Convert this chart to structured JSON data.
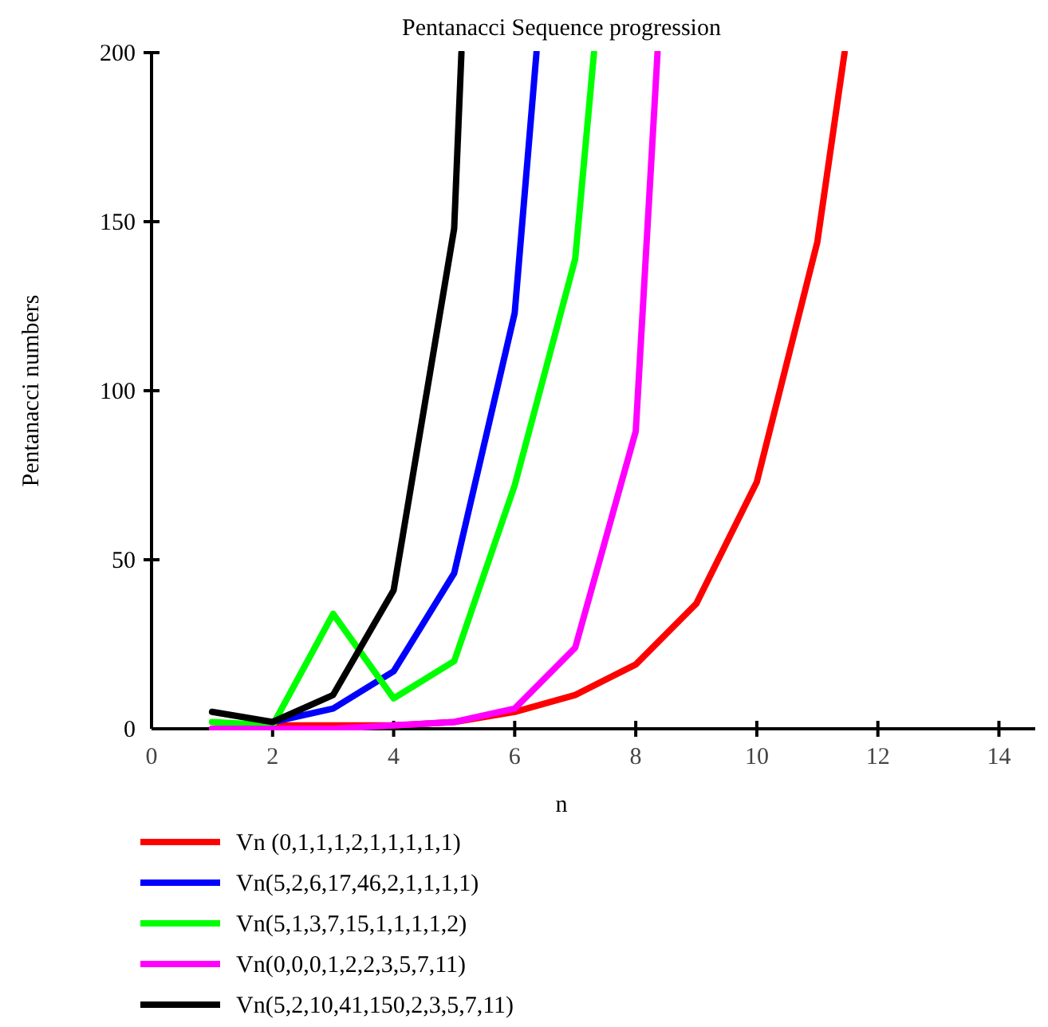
{
  "chart_data": {
    "type": "line",
    "title": "Pentanacci  Sequence progression",
    "xlabel": "n",
    "ylabel": "Pentanacci  numbers",
    "xlim": [
      0,
      14.6
    ],
    "xticks": [
      0,
      2,
      4,
      6,
      8,
      10,
      12,
      14
    ],
    "ylim": [
      0,
      200
    ],
    "yticks": [
      0,
      50,
      100,
      150,
      200
    ],
    "grid": false,
    "legend": "bottom",
    "line_style": "solid",
    "marker": "none",
    "series": [
      {
        "name": "Vn (0,1,1,1,2,1,1,1,1,1)",
        "color": "#ff0000",
        "x": [
          1,
          2,
          3,
          4,
          5,
          6,
          7,
          8,
          9,
          10,
          11,
          11.45
        ],
        "values": [
          0,
          1,
          1,
          1,
          2,
          5,
          10,
          19,
          37,
          73,
          144,
          200
        ]
      },
      {
        "name": "Vn(5,2,6,17,46,2,1,1,1,1)",
        "color": "#0000ff",
        "x": [
          2,
          3,
          4,
          5,
          6,
          6.36
        ],
        "values": [
          2,
          6,
          17,
          46,
          123,
          200
        ]
      },
      {
        "name": "Vn(5,1,3,7,15,1,1,1,1,2)",
        "color": "#00ff00",
        "x": [
          1,
          2,
          3,
          4,
          5,
          6,
          7,
          7.31
        ],
        "values": [
          2,
          1,
          34,
          9,
          20,
          72,
          139,
          200
        ]
      },
      {
        "name": "Vn(0,0,0,1,2,2,3,5,7,11)",
        "color": "#ff00ff",
        "x": [
          1,
          2,
          3,
          4,
          5,
          6,
          7,
          8,
          8.36
        ],
        "values": [
          0,
          0,
          0,
          1,
          2,
          6,
          24,
          88,
          200
        ]
      },
      {
        "name": "Vn(5,2,10,41,150,2,3,5,7,11)",
        "color": "#000000",
        "x": [
          1,
          2,
          3,
          4,
          5,
          5.12
        ],
        "values": [
          5,
          2,
          10,
          41,
          148,
          200
        ]
      }
    ]
  }
}
